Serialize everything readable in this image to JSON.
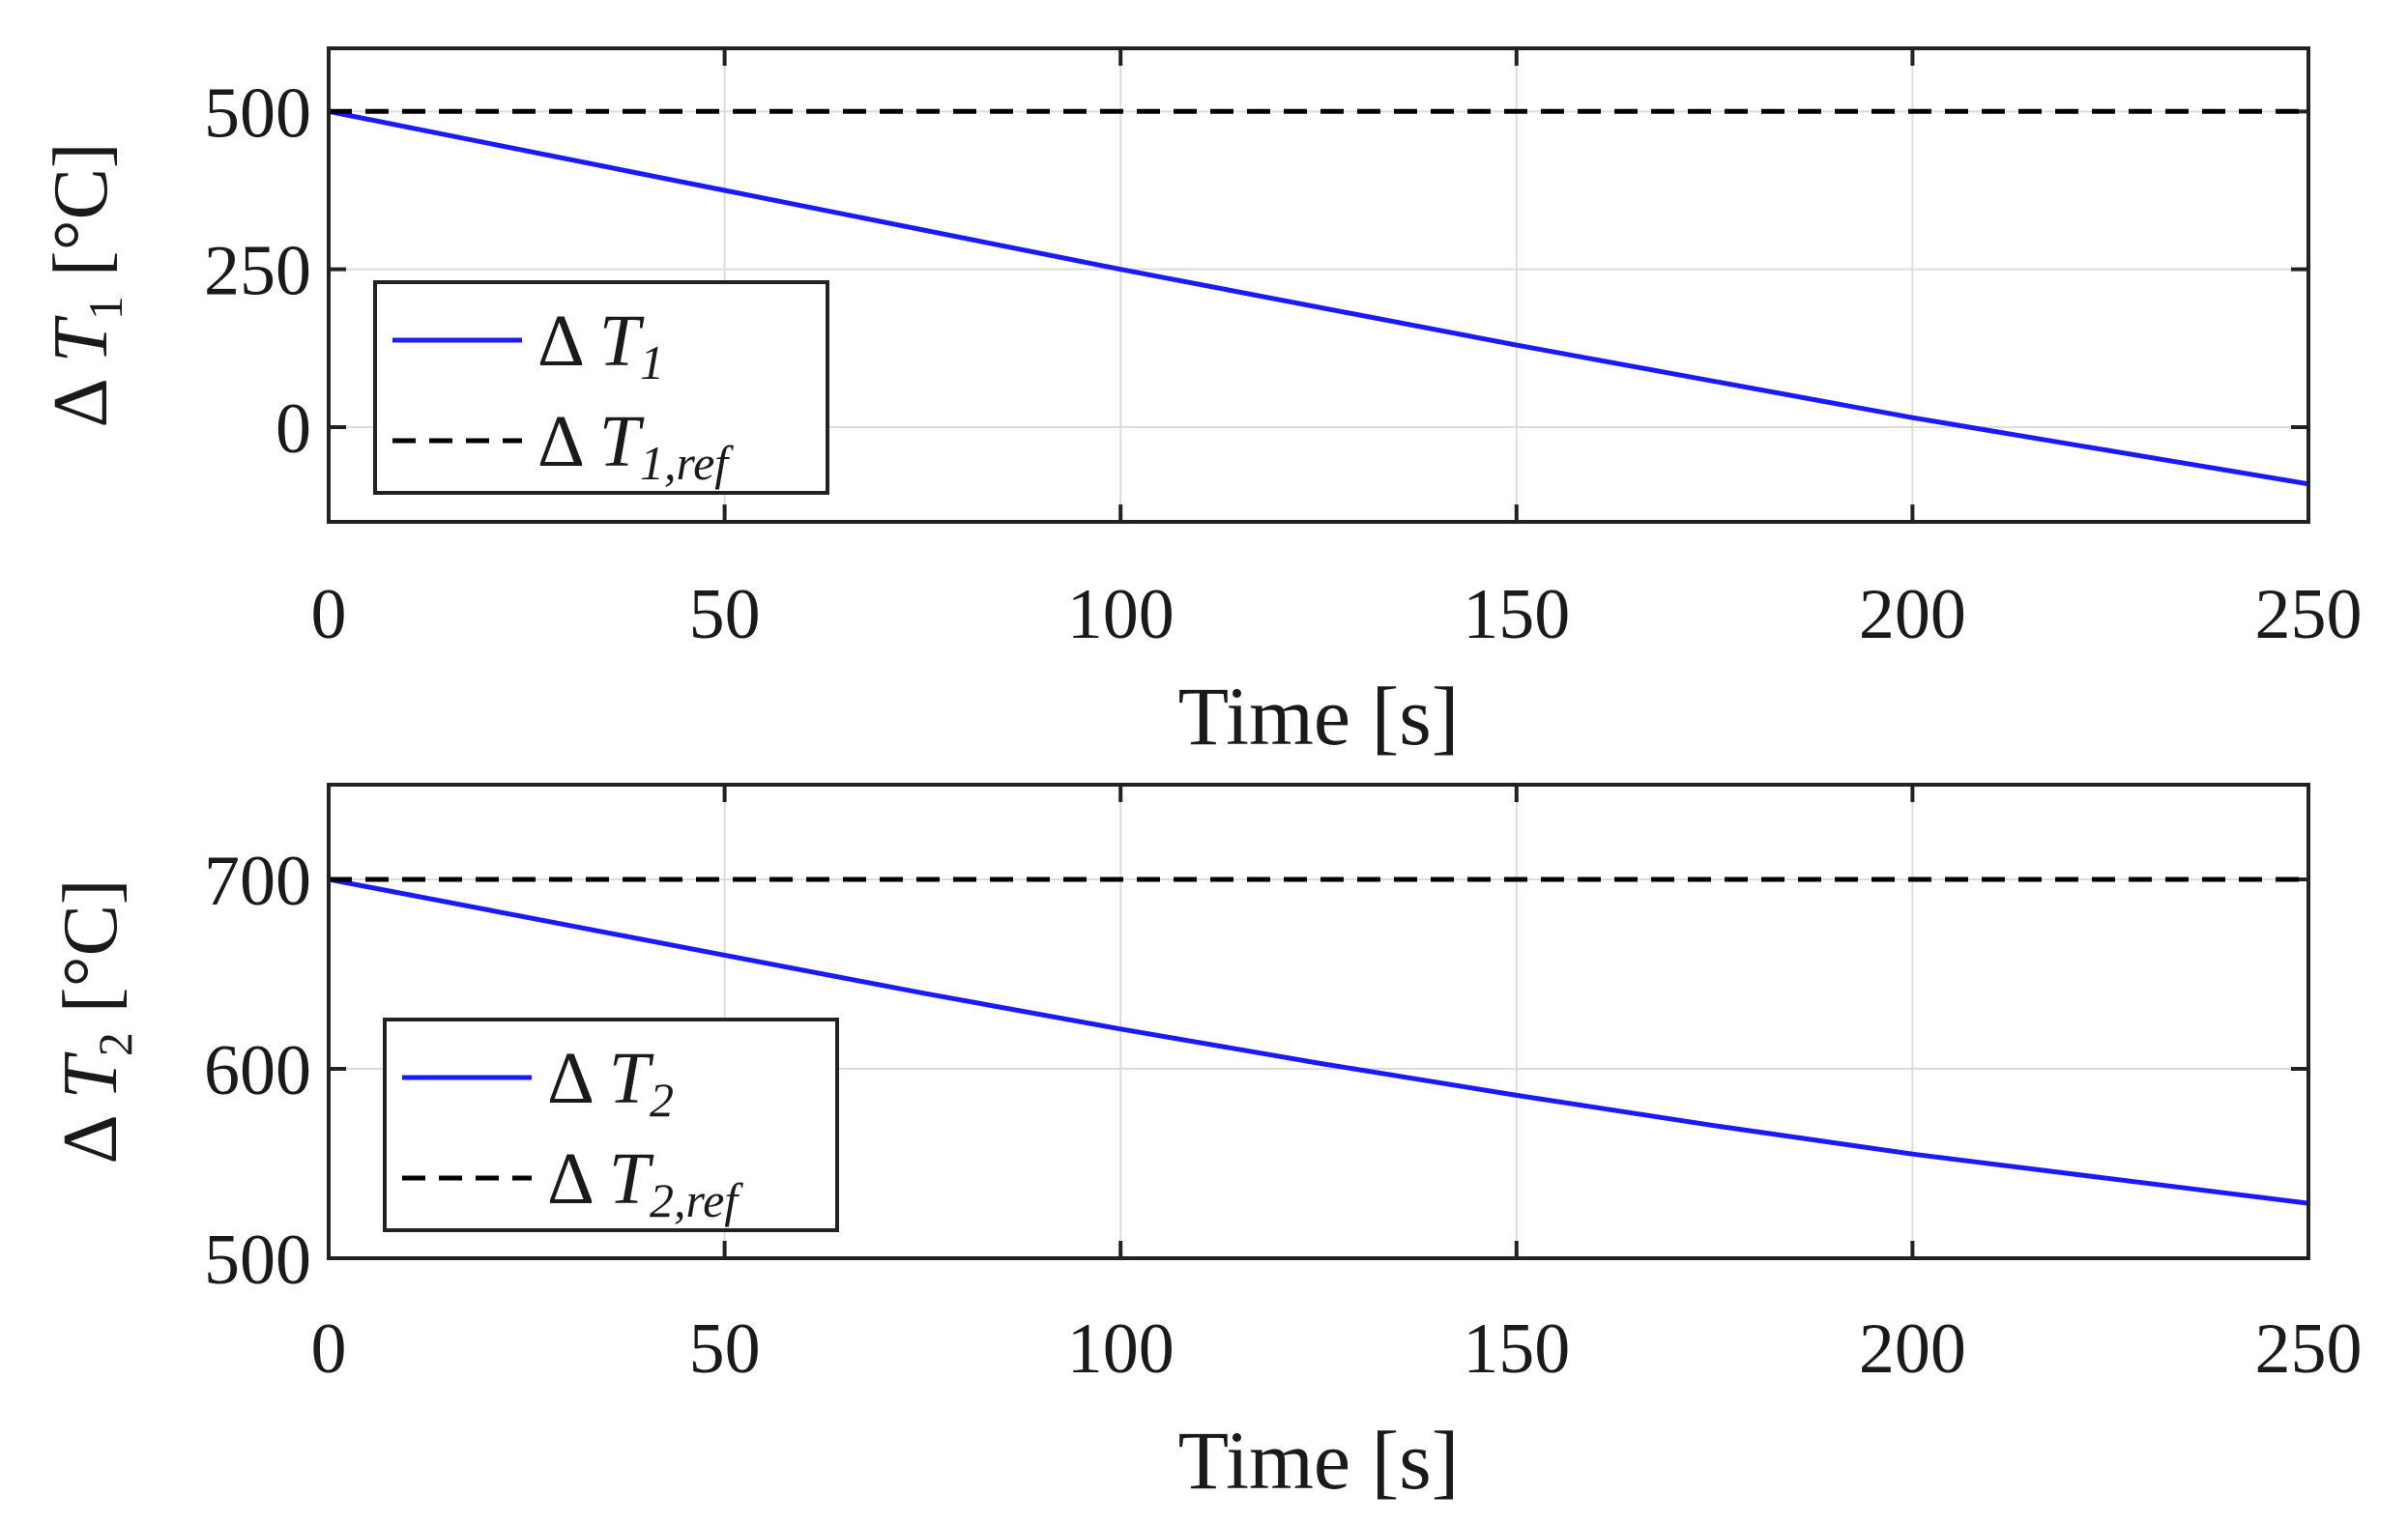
{
  "chart_data": [
    {
      "type": "line",
      "xlabel": "Time [s]",
      "ylabel": {
        "prefix": "Δ",
        "symbol": "T",
        "subscript": "1",
        "unit": "[°C]"
      },
      "xlim": [
        0,
        250
      ],
      "ylim": [
        -150,
        600
      ],
      "xticks": [
        0,
        50,
        100,
        150,
        200,
        250
      ],
      "yticks": [
        0,
        250,
        500
      ],
      "grid": true,
      "legend_placement": "lower-left",
      "x": [
        0,
        50,
        100,
        150,
        200,
        250
      ],
      "series": [
        {
          "name": {
            "prefix": "Δ",
            "symbol": "T",
            "subscript": "1"
          },
          "style": "solid",
          "color": "#1a1aff",
          "values": [
            500,
            375,
            250,
            130,
            15,
            -90
          ]
        },
        {
          "name": {
            "prefix": "Δ",
            "symbol": "T",
            "subscript": "1,ref"
          },
          "style": "dashed",
          "color": "#000000",
          "values": [
            500,
            500,
            500,
            500,
            500,
            500
          ]
        }
      ]
    },
    {
      "type": "line",
      "xlabel": "Time [s]",
      "ylabel": {
        "prefix": "Δ",
        "symbol": "T",
        "subscript": "2",
        "unit": "[°C]"
      },
      "xlim": [
        0,
        250
      ],
      "ylim": [
        500,
        750
      ],
      "xticks": [
        0,
        50,
        100,
        150,
        200,
        250
      ],
      "yticks": [
        500,
        600,
        700
      ],
      "grid": true,
      "legend_placement": "lower-left",
      "x": [
        0,
        25,
        50,
        75,
        100,
        125,
        150,
        175,
        200,
        225,
        250
      ],
      "series": [
        {
          "name": {
            "prefix": "Δ",
            "symbol": "T",
            "subscript": "2"
          },
          "style": "solid",
          "color": "#1a1aff",
          "values": [
            700,
            680,
            660,
            640,
            621,
            603,
            586,
            570,
            555,
            542,
            529
          ]
        },
        {
          "name": {
            "prefix": "Δ",
            "symbol": "T",
            "subscript": "2,ref"
          },
          "style": "dashed",
          "color": "#000000",
          "values": [
            700,
            700,
            700,
            700,
            700,
            700,
            700,
            700,
            700,
            700,
            700
          ]
        }
      ]
    }
  ]
}
